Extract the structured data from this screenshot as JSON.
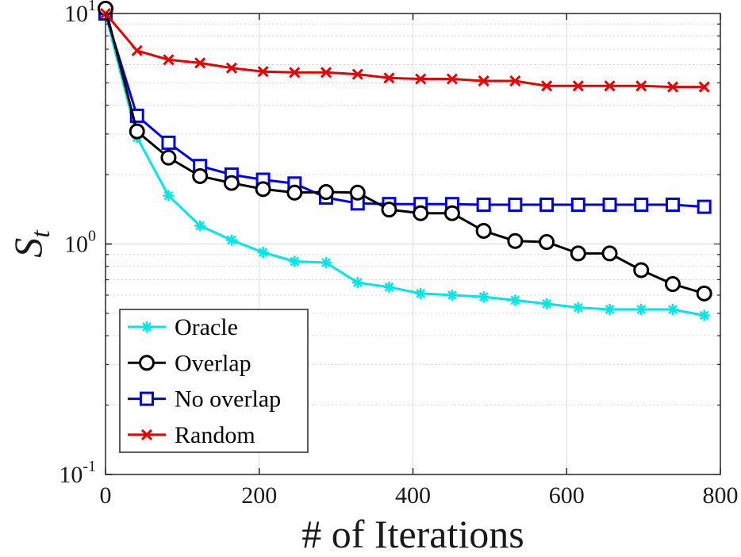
{
  "chart_data": {
    "type": "line",
    "yscale": "log",
    "title": "",
    "xlabel": "# of Iterations",
    "ylabel": "S_t",
    "ylabel_main": "S",
    "ylabel_sub": "t",
    "xlim": [
      0,
      800
    ],
    "ylim": [
      0.1,
      10
    ],
    "xticks": [
      0,
      200,
      400,
      600,
      800
    ],
    "xtick_labels": [
      "0",
      "200",
      "400",
      "600",
      "800"
    ],
    "yticks": [
      0.1,
      1,
      10
    ],
    "ytick_labels": [
      {
        "base": "10",
        "exp": "-1"
      },
      {
        "base": "10",
        "exp": "0"
      },
      {
        "base": "10",
        "exp": "1"
      }
    ],
    "grid": true,
    "legend_position": "bottom-left",
    "x": [
      0,
      41,
      82,
      123,
      164,
      205,
      246,
      287,
      328,
      369,
      410,
      451,
      492,
      533,
      574,
      615,
      656,
      697,
      738,
      779
    ],
    "series": [
      {
        "name": "Oracle",
        "color": "#00e5e5",
        "marker": "star",
        "values": [
          10.0,
          2.9,
          1.62,
          1.2,
          1.04,
          0.92,
          0.84,
          0.83,
          0.68,
          0.65,
          0.61,
          0.6,
          0.59,
          0.57,
          0.55,
          0.53,
          0.52,
          0.52,
          0.52,
          0.49
        ]
      },
      {
        "name": "Overlap",
        "color": "#000000",
        "marker": "circle",
        "values": [
          10.5,
          3.08,
          2.37,
          1.97,
          1.84,
          1.73,
          1.67,
          1.68,
          1.67,
          1.41,
          1.36,
          1.36,
          1.14,
          1.03,
          1.02,
          0.91,
          0.91,
          0.77,
          0.67,
          0.61
        ]
      },
      {
        "name": "No overlap",
        "color": "#0000e6",
        "marker": "square",
        "values": [
          10.0,
          3.6,
          2.75,
          2.18,
          2.0,
          1.9,
          1.83,
          1.59,
          1.5,
          1.49,
          1.49,
          1.49,
          1.48,
          1.48,
          1.48,
          1.48,
          1.48,
          1.48,
          1.48,
          1.45
        ]
      },
      {
        "name": "Random",
        "color": "#e60000",
        "marker": "x",
        "values": [
          10.0,
          6.9,
          6.3,
          6.1,
          5.8,
          5.6,
          5.55,
          5.55,
          5.45,
          5.25,
          5.2,
          5.2,
          5.1,
          5.1,
          4.85,
          4.85,
          4.85,
          4.85,
          4.8,
          4.8
        ]
      }
    ]
  }
}
